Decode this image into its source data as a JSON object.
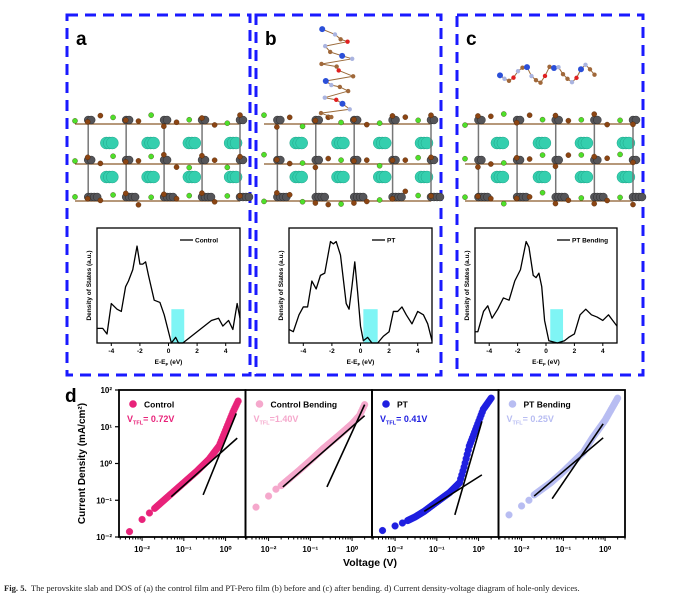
{
  "colors": {
    "frame": "#1a1aff",
    "control": "#e8237a",
    "control_bending": "#f5a8cc",
    "pt": "#1f1fe0",
    "pt_bending": "#b8bdf2",
    "band_gap": "#7ff5f5",
    "pb": "#555559",
    "halide": "#8b4513",
    "cl": "#4ee02a",
    "cs": "#34cfae",
    "n": "#2b4fd8",
    "o": "#e02020",
    "h": "#aab4e0"
  },
  "panels": [
    {
      "letter": "a",
      "has_molecule": false,
      "molecule_shape": ""
    },
    {
      "letter": "b",
      "has_molecule": true,
      "molecule_shape": "vertical-chain"
    },
    {
      "letter": "c",
      "has_molecule": true,
      "molecule_shape": "flat-lying"
    }
  ],
  "chart_data": [
    {
      "type": "line",
      "panel": "a",
      "xlabel": "E-E_F (eV)",
      "xlabel_main": "E-E",
      "xlabel_sub": "F",
      "xlabel_unit": " (eV)",
      "ylabel": "Density of States (a.u.)",
      "xlim": [
        -5,
        5
      ],
      "x_ticks": [
        "-4",
        "-2",
        "0",
        "2",
        "4"
      ],
      "x_tick_values": [
        -4,
        -2,
        0,
        2,
        4
      ],
      "legend": "Control",
      "legend_position": "top-right",
      "highlight_range": [
        0.2,
        1.1
      ],
      "series": [
        {
          "name": "Control",
          "x": [
            -5,
            -4.6,
            -4.3,
            -4,
            -3.6,
            -3.3,
            -3,
            -2.8,
            -2.5,
            -2.2,
            -2,
            -1.8,
            -1.6,
            -1.4,
            -1,
            -0.6,
            -0.3,
            0,
            0.2,
            0.5,
            0.7,
            1,
            1.5,
            2,
            2.5,
            3,
            3.5,
            3.8,
            4.2,
            4.5,
            4.8,
            5
          ],
          "y": [
            0.13,
            0.13,
            0.08,
            0.35,
            0.3,
            0.28,
            0.5,
            0.55,
            0.65,
            0.86,
            0.7,
            0.7,
            0.72,
            0.6,
            0.38,
            0.36,
            0.25,
            0.1,
            0,
            0.05,
            0,
            0,
            0.05,
            0.1,
            0.15,
            0.2,
            0.22,
            0.15,
            0.2,
            0.12,
            0.35,
            0.22
          ]
        }
      ]
    },
    {
      "type": "line",
      "panel": "b",
      "xlabel": "E-E_F (eV)",
      "xlabel_main": "E-E",
      "xlabel_sub": "F",
      "xlabel_unit": " (eV)",
      "ylabel": "Density of States (a.u.)",
      "xlim": [
        -5,
        5
      ],
      "x_ticks": [
        "-4",
        "-2",
        "0",
        "2",
        "4"
      ],
      "x_tick_values": [
        -4,
        -2,
        0,
        2,
        4
      ],
      "legend": "PT",
      "legend_position": "top-right",
      "highlight_range": [
        0.2,
        1.2
      ],
      "series": [
        {
          "name": "PT",
          "x": [
            -5,
            -4.7,
            -4.3,
            -4,
            -3.7,
            -3.4,
            -3.1,
            -2.8,
            -2.5,
            -2.1,
            -1.9,
            -1.7,
            -1.4,
            -1,
            -0.8,
            -0.6,
            -0.4,
            -0.2,
            0,
            0.2,
            0.5,
            0.8,
            1.2,
            1.6,
            2,
            2.3,
            2.6,
            2.9,
            3.2,
            3.6,
            4,
            4.4,
            4.7,
            5
          ],
          "y": [
            0.12,
            0.1,
            0.25,
            0.32,
            0.32,
            0.55,
            0.48,
            0.6,
            0.62,
            0.9,
            0.88,
            0.9,
            0.78,
            0.35,
            0.3,
            0.5,
            0.72,
            0.45,
            0.15,
            0.02,
            0.05,
            0,
            0,
            0.06,
            0.1,
            0.28,
            0.28,
            0.32,
            0.25,
            0.17,
            0.28,
            0.25,
            0.17,
            0.02
          ]
        }
      ]
    },
    {
      "type": "line",
      "panel": "c",
      "xlabel": "E-E_F (eV)",
      "xlabel_main": "E-E",
      "xlabel_sub": "F",
      "xlabel_unit": " (eV)",
      "ylabel": "Density of States (a.u.)",
      "xlim": [
        -5,
        5
      ],
      "x_ticks": [
        "-4",
        "-2",
        "0",
        "2",
        "4"
      ],
      "x_tick_values": [
        -4,
        -2,
        0,
        2,
        4
      ],
      "legend": "PT Bending",
      "legend_position": "top-right",
      "highlight_range": [
        0.3,
        1.2
      ],
      "series": [
        {
          "name": "PT Bending",
          "x": [
            -5,
            -4.8,
            -4.4,
            -4.1,
            -3.8,
            -3.4,
            -3,
            -2.6,
            -2.2,
            -1.8,
            -1.4,
            -1.2,
            -0.9,
            -0.7,
            -0.5,
            -0.3,
            -0.1,
            0.2,
            0.8,
            1.3,
            1.6,
            2,
            2.4,
            2.8,
            3.2,
            3.6,
            4,
            4.4,
            4.7,
            5
          ],
          "y": [
            0.1,
            0.1,
            0.28,
            0.33,
            0.22,
            0.3,
            0.4,
            0.38,
            0.55,
            0.65,
            0.9,
            0.85,
            0.6,
            0.58,
            0.62,
            0.5,
            0.2,
            0.02,
            0,
            0.02,
            0.05,
            0.08,
            0.25,
            0.3,
            0.25,
            0.23,
            0.2,
            0.25,
            0.2,
            0.15
          ]
        }
      ]
    },
    {
      "type": "scatter",
      "panel": "d",
      "letter": "d",
      "xlabel": "Voltage (V)",
      "ylabel": "Current Density (mA/cm²)",
      "x_scale": "log",
      "y_scale": "log",
      "xlim": [
        0.0028,
        3
      ],
      "ylim": [
        0.01,
        100
      ],
      "x_ticks": [
        "10⁻²",
        "10⁻¹",
        "10⁰"
      ],
      "x_tick_values": [
        0.01,
        0.1,
        1
      ],
      "y_ticks": [
        "10²",
        "10¹",
        "10⁰",
        "10⁻¹",
        "10⁻²"
      ],
      "y_tick_values": [
        100,
        10,
        1,
        0.1,
        0.01
      ],
      "series": [
        {
          "name": "Control",
          "color_key": "control",
          "vtfl": {
            "symbol": "V",
            "sub": "TFL",
            "value": "= 0.72V"
          },
          "x": [
            0.005,
            0.01,
            0.015,
            0.02,
            0.03,
            0.05,
            0.1,
            0.2,
            0.4,
            0.7,
            1,
            1.5,
            2
          ],
          "y": [
            0.014,
            0.03,
            0.045,
            0.06,
            0.09,
            0.15,
            0.3,
            0.6,
            1.3,
            3,
            8,
            25,
            50
          ],
          "fit_lines": [
            [
              [
                0.05,
                0.125
              ],
              [
                1.9,
                4.9
              ]
            ],
            [
              [
                0.29,
                0.14
              ],
              [
                1.8,
                23
              ]
            ]
          ]
        },
        {
          "name": "Control Bending",
          "color_key": "control_bending",
          "vtfl": {
            "symbol": "V",
            "sub": "TFL",
            "value": "=1.40V"
          },
          "x": [
            0.005,
            0.01,
            0.015,
            0.02,
            0.05,
            0.1,
            0.2,
            0.5,
            1,
            1.5,
            2
          ],
          "y": [
            0.065,
            0.13,
            0.2,
            0.25,
            0.6,
            1.2,
            2.5,
            6,
            12,
            20,
            40
          ],
          "fit_lines": [
            [
              [
                0.022,
                0.23
              ],
              [
                2,
                20
              ]
            ],
            [
              [
                0.25,
                0.23
              ],
              [
                2,
                40
              ]
            ]
          ]
        },
        {
          "name": "PT",
          "color_key": "pt",
          "vtfl": {
            "symbol": "V",
            "sub": "TFL",
            "value": "= 0.41V"
          },
          "x": [
            0.005,
            0.01,
            0.015,
            0.02,
            0.03,
            0.05,
            0.1,
            0.2,
            0.35,
            0.45,
            0.6,
            0.9,
            1.3,
            2
          ],
          "y": [
            0.015,
            0.02,
            0.024,
            0.028,
            0.035,
            0.05,
            0.09,
            0.16,
            0.3,
            0.8,
            3,
            10,
            30,
            60
          ],
          "fit_lines": [
            [
              [
                0.05,
                0.05
              ],
              [
                1.2,
                0.49
              ]
            ],
            [
              [
                0.27,
                0.04
              ],
              [
                1.2,
                14
              ]
            ]
          ]
        },
        {
          "name": "PT Bending",
          "color_key": "pt_bending",
          "vtfl": {
            "symbol": "V",
            "sub": "TFL",
            "value": "= 0.25V"
          },
          "x": [
            0.005,
            0.01,
            0.015,
            0.02,
            0.05,
            0.1,
            0.2,
            0.3,
            0.5,
            1,
            2
          ],
          "y": [
            0.04,
            0.07,
            0.1,
            0.14,
            0.3,
            0.6,
            1.3,
            2,
            5,
            15,
            60
          ],
          "fit_lines": [
            [
              [
                0.02,
                0.13
              ],
              [
                0.9,
                5
              ]
            ],
            [
              [
                0.054,
                0.11
              ],
              [
                0.9,
                12
              ]
            ]
          ]
        }
      ]
    }
  ],
  "caption": {
    "label": "Fig. 5.",
    "text": "The perovskite slab and DOS of (a) the control film and PT-Pero film (b) before and (c) after bending. d) Current density-voltage diagram of hole-only devices."
  }
}
